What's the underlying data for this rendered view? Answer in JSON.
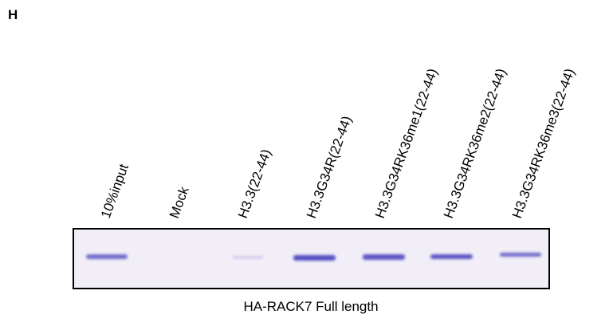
{
  "panel": {
    "label": "H",
    "lanes": [
      "10%input",
      "Mock",
      "H3.3(22-44)",
      "H3.3G34R(22-44)",
      "H3.3G34RK36me1(22-44)",
      "H3.3G34RK36me2(22-44)",
      "H3.3G34RK36me3(22-44)"
    ],
    "caption": "HA-RACK7 Full length"
  }
}
